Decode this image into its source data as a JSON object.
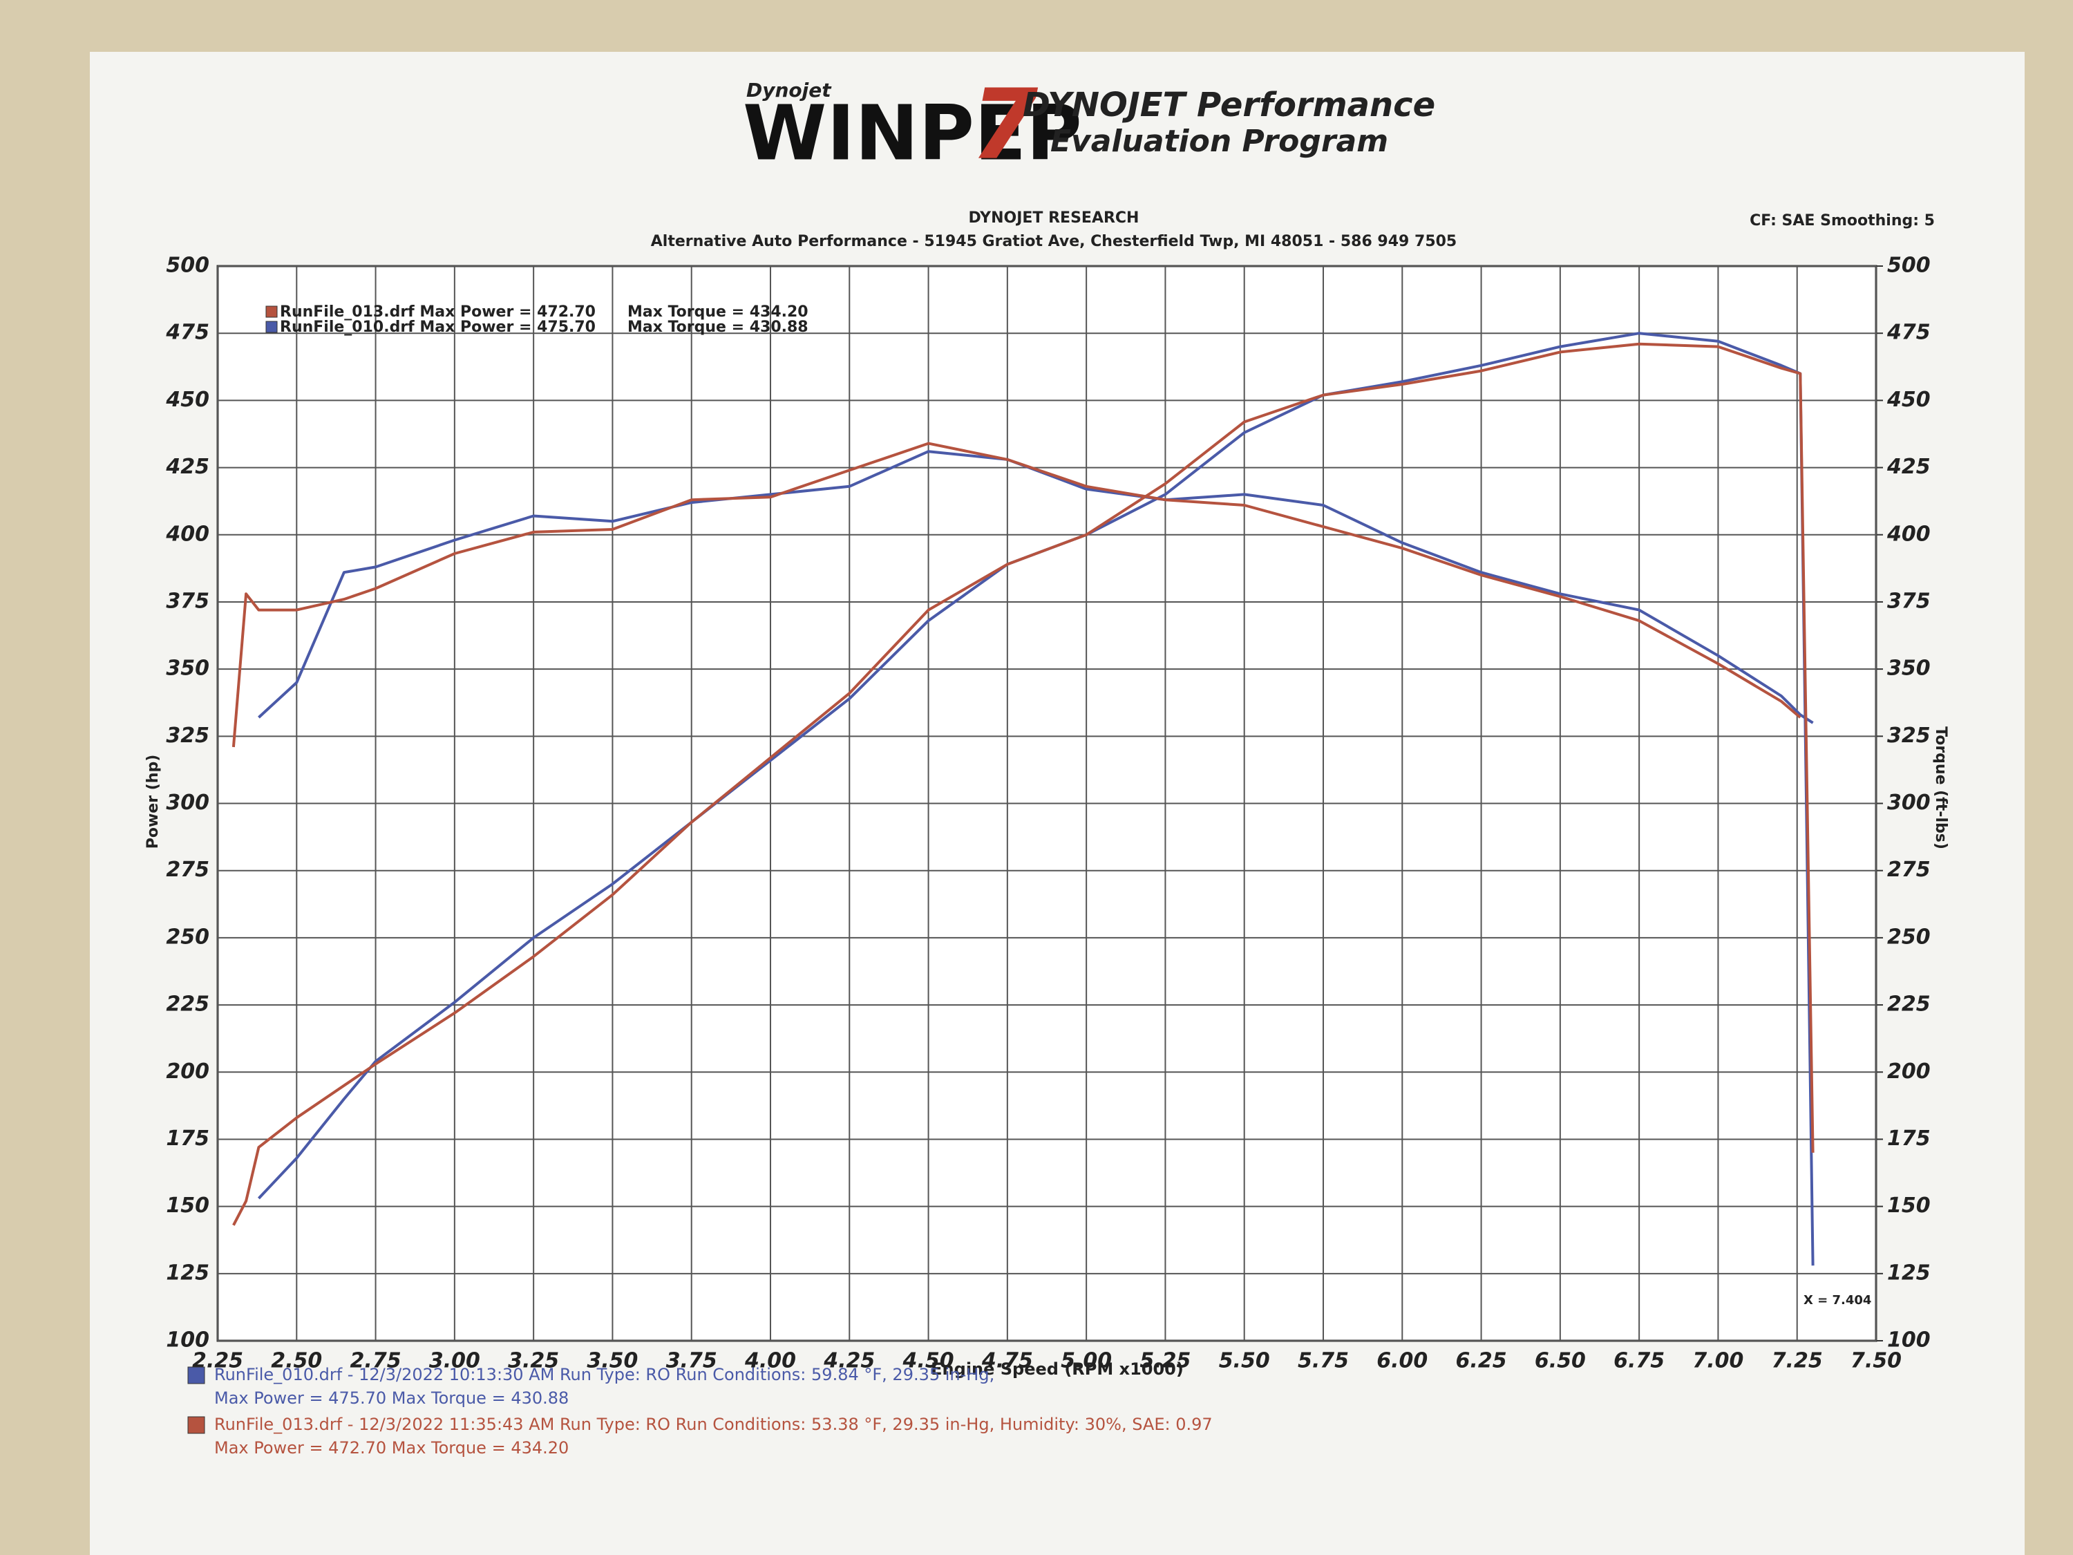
{
  "header": {
    "brand_small": "Dynojet",
    "logo": "WINPEP",
    "logo_number": "7",
    "tagline_1": "DYNOJET Performance",
    "tagline_2": "Evaluation Program"
  },
  "chart_data": {
    "type": "line",
    "title": "DYNOJET RESEARCH",
    "subtitle": "Alternative Auto Performance - 51945 Gratiot Ave, Chesterfield Twp, MI 48051 - 586 949 7505",
    "settings_text": "CF: SAE  Smoothing: 5",
    "xlabel": "Engine Speed (RPM x1000)",
    "ylabel": "Power (hp)",
    "y2label": "Torque (ft-lbs)",
    "annotation": "X = 7.404",
    "grid": true,
    "xlim": [
      2.25,
      7.5
    ],
    "xticks": [
      2.25,
      {
        "value": 2.5,
        "label": "2.50"
      },
      2.75,
      {
        "value": 3,
        "label": "3.00"
      },
      3.25,
      {
        "value": 3.5,
        "label": "3.50"
      },
      3.75,
      {
        "value": 4,
        "label": "4.00"
      },
      4.25,
      {
        "value": 4.5,
        "label": "4.50"
      },
      4.75,
      {
        "value": 5,
        "label": "5.00"
      },
      5.25,
      {
        "value": 5.5,
        "label": "5.50"
      },
      5.75,
      {
        "value": 6,
        "label": "6.00"
      },
      6.25,
      {
        "value": 6.5,
        "label": "6.50"
      },
      6.75,
      {
        "value": 7,
        "label": "7.00"
      },
      7.25,
      {
        "value": 7.5,
        "label": "7.50"
      }
    ],
    "ylim": [
      100,
      500
    ],
    "yticks": [
      100,
      125,
      150,
      175,
      200,
      225,
      250,
      275,
      300,
      325,
      350,
      375,
      400,
      425,
      450,
      475,
      500
    ],
    "y2lim": [
      100,
      500
    ],
    "y2ticks": [
      100,
      125,
      150,
      175,
      200,
      225,
      250,
      275,
      300,
      325,
      350,
      375,
      400,
      425,
      450,
      475,
      500
    ],
    "x": [
      2.3,
      2.34,
      2.38,
      2.5,
      2.65,
      2.75,
      3.0,
      3.25,
      3.5,
      3.75,
      4.0,
      4.25,
      4.5,
      4.75,
      5.0,
      5.25,
      5.5,
      5.75,
      6.0,
      6.25,
      6.5,
      6.75,
      7.0,
      7.2,
      7.26,
      7.3
    ],
    "series": [
      {
        "color": "#4a5aa8",
        "values": [
          null,
          null,
          153,
          168,
          190,
          204,
          226,
          250,
          270,
          293,
          316,
          339,
          368,
          389,
          400,
          415,
          438,
          452,
          457,
          463,
          470,
          475,
          472,
          463,
          460,
          128
        ]
      },
      {
        "color": "#4a5aa8",
        "axis": "y2",
        "values": [
          null,
          null,
          332,
          345,
          386,
          388,
          398,
          407,
          405,
          412,
          415,
          418,
          431,
          428,
          417,
          413,
          415,
          411,
          397,
          386,
          378,
          372,
          355,
          340,
          333,
          330
        ]
      },
      {
        "color": "#b5533f",
        "values": [
          143,
          152,
          172,
          183,
          195,
          203,
          222,
          243,
          266,
          293,
          317,
          341,
          372,
          389,
          400,
          419,
          442,
          452,
          456,
          461,
          468,
          471,
          470,
          462,
          460,
          170
        ]
      },
      {
        "color": "#b5533f",
        "axis": "y2",
        "values": [
          321,
          378,
          372,
          372,
          376,
          380,
          393,
          401,
          402,
          413,
          414,
          424,
          434,
          428,
          418,
          413,
          411,
          403,
          395,
          385,
          377,
          368,
          352,
          338,
          332,
          null
        ]
      }
    ],
    "legend": [
      {
        "color": "#b5533f",
        "text": "RunFile_013.drf Max Power = 472.70",
        "torque": "Max Torque = 434.20"
      },
      {
        "color": "#4a5aa8",
        "text": "RunFile_010.drf Max Power = 475.70",
        "torque": "Max Torque = 430.88"
      }
    ],
    "footer": [
      {
        "color": "#4a5aa8",
        "line1": "RunFile_010.drf - 12/3/2022 10:13:30 AM  Run Type: RO  Run Conditions: 59.84 °F, 29.35 in-Hg,",
        "line2": "Max Power = 475.70  Max Torque = 430.88"
      },
      {
        "color": "#b5533f",
        "line1": "RunFile_013.drf - 12/3/2022 11:35:43 AM  Run Type: RO  Run Conditions: 53.38 °F, 29.35 in-Hg,  Humidity: 30%, SAE: 0.97",
        "line2": "Max Power = 472.70  Max Torque = 434.20"
      }
    ]
  }
}
